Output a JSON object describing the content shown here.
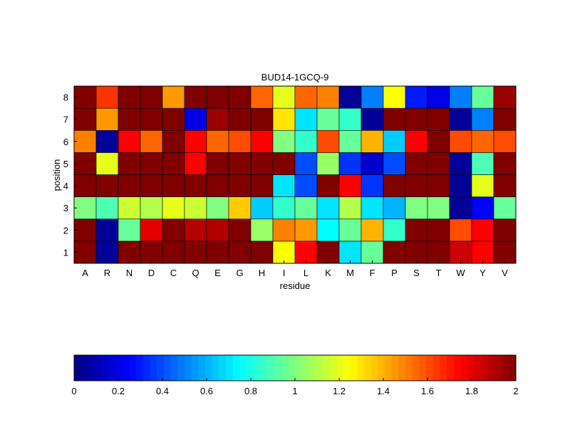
{
  "chart_data": {
    "type": "heatmap",
    "title": "BUD14-1GCQ-9",
    "xlabel": "residue",
    "ylabel": "position",
    "x_categories": [
      "A",
      "R",
      "N",
      "D",
      "C",
      "Q",
      "E",
      "G",
      "H",
      "I",
      "L",
      "K",
      "M",
      "F",
      "P",
      "S",
      "T",
      "W",
      "Y",
      "V"
    ],
    "y_categories": [
      "1",
      "2",
      "3",
      "4",
      "5",
      "6",
      "7",
      "8"
    ],
    "colormap": "jet",
    "clim": [
      0,
      2
    ],
    "colorbar": {
      "location": "bottom",
      "ticks": [
        0,
        0.2,
        0.4,
        0.6,
        0.8,
        1,
        1.2,
        1.4,
        1.6,
        1.8,
        2
      ],
      "tick_labels": [
        "0",
        "0.2",
        "0.4",
        "0.6",
        "0.8",
        "1",
        "1.2",
        "1.4",
        "1.6",
        "1.8",
        "2"
      ]
    },
    "values": [
      [
        2.0,
        0.05,
        2.0,
        2.0,
        2.0,
        2.0,
        2.0,
        2.0,
        2.0,
        1.25,
        1.75,
        2.0,
        0.7,
        0.95,
        2.0,
        2.0,
        2.0,
        1.85,
        1.75,
        2.0
      ],
      [
        2.0,
        0.05,
        0.95,
        1.8,
        2.0,
        1.9,
        1.9,
        2.0,
        1.05,
        1.5,
        1.45,
        0.75,
        0.95,
        1.4,
        0.85,
        2.0,
        2.0,
        1.6,
        1.75,
        2.0
      ],
      [
        1.0,
        0.9,
        1.15,
        1.1,
        1.2,
        1.15,
        1.0,
        1.35,
        0.65,
        0.85,
        0.95,
        0.7,
        1.1,
        0.7,
        0.6,
        1.0,
        1.0,
        0.05,
        0.25,
        0.95
      ],
      [
        2.0,
        2.0,
        2.0,
        2.0,
        2.0,
        2.0,
        2.0,
        2.0,
        2.0,
        0.7,
        0.4,
        2.0,
        1.75,
        0.35,
        2.0,
        2.0,
        2.0,
        0.05,
        1.2,
        2.0
      ],
      [
        2.0,
        1.2,
        2.0,
        2.0,
        2.0,
        1.75,
        2.0,
        2.0,
        2.0,
        2.0,
        0.4,
        1.05,
        0.35,
        0.15,
        0.4,
        2.0,
        2.0,
        0.05,
        0.9,
        2.0
      ],
      [
        1.5,
        0.05,
        1.75,
        1.55,
        2.0,
        1.75,
        1.55,
        1.6,
        1.75,
        1.0,
        0.85,
        1.6,
        0.95,
        1.4,
        0.65,
        1.75,
        2.0,
        1.6,
        1.55,
        1.6
      ],
      [
        2.0,
        1.45,
        2.0,
        2.0,
        2.0,
        0.2,
        1.95,
        2.0,
        2.0,
        1.3,
        0.7,
        0.95,
        0.85,
        0.05,
        2.0,
        2.0,
        2.0,
        0.05,
        0.5,
        2.0
      ],
      [
        2.0,
        1.65,
        2.0,
        2.0,
        1.45,
        2.0,
        2.0,
        2.0,
        1.55,
        1.2,
        1.55,
        1.5,
        0.05,
        0.5,
        1.25,
        0.3,
        0.2,
        0.5,
        0.95,
        1.95
      ]
    ]
  }
}
